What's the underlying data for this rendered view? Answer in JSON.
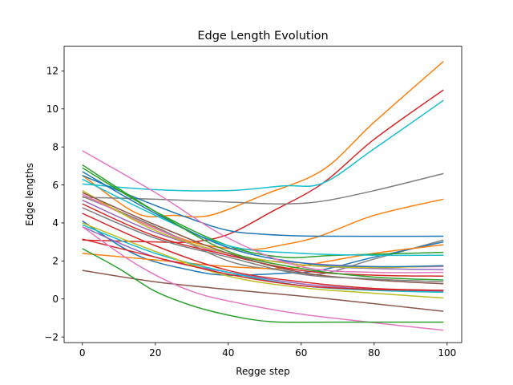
{
  "chart_data": {
    "type": "line",
    "title": "Edge Length Evolution",
    "xlabel": "Regge step",
    "ylabel": "Edge lengths",
    "xlim": [
      -5,
      104
    ],
    "ylim": [
      -2.3,
      13.3
    ],
    "x_ticks": [
      0,
      20,
      40,
      60,
      80,
      100
    ],
    "y_ticks": [
      -2,
      0,
      2,
      4,
      6,
      8,
      10,
      12
    ],
    "grid": false,
    "legend": "none",
    "series": [
      {
        "color": "#ff7f0e",
        "points": [
          [
            0,
            6.5
          ],
          [
            15,
            4.5
          ],
          [
            25,
            4.4
          ],
          [
            35,
            4.4
          ],
          [
            50,
            5.5
          ],
          [
            66,
            6.8
          ],
          [
            80,
            9.3
          ],
          [
            99,
            12.5
          ]
        ]
      },
      {
        "color": "#d62728",
        "points": [
          [
            0,
            3.1
          ],
          [
            20,
            3.0
          ],
          [
            30,
            3.0
          ],
          [
            40,
            3.4
          ],
          [
            52,
            4.6
          ],
          [
            66,
            6.1
          ],
          [
            80,
            8.4
          ],
          [
            99,
            11.0
          ]
        ]
      },
      {
        "color": "#17becf",
        "points": [
          [
            0,
            6.05
          ],
          [
            20,
            5.75
          ],
          [
            40,
            5.7
          ],
          [
            55,
            5.95
          ],
          [
            66,
            6.1
          ],
          [
            80,
            7.9
          ],
          [
            99,
            10.45
          ]
        ]
      },
      {
        "color": "#7f7f7f",
        "points": [
          [
            0,
            5.35
          ],
          [
            20,
            5.25
          ],
          [
            40,
            5.1
          ],
          [
            55,
            5.0
          ],
          [
            66,
            5.15
          ],
          [
            80,
            5.7
          ],
          [
            99,
            6.6
          ]
        ]
      },
      {
        "color": "#ff7f0e",
        "points": [
          [
            0,
            5.5
          ],
          [
            15,
            4.2
          ],
          [
            30,
            3.0
          ],
          [
            45,
            2.6
          ],
          [
            55,
            2.85
          ],
          [
            65,
            3.3
          ],
          [
            80,
            4.4
          ],
          [
            99,
            5.25
          ]
        ]
      },
      {
        "color": "#1f77b4",
        "points": [
          [
            0,
            6.5
          ],
          [
            15,
            5.3
          ],
          [
            30,
            4.2
          ],
          [
            40,
            3.6
          ],
          [
            50,
            3.4
          ],
          [
            65,
            3.3
          ],
          [
            99,
            3.3
          ]
        ]
      },
      {
        "color": "#7f7f7f",
        "points": [
          [
            0,
            5.4
          ],
          [
            20,
            3.8
          ],
          [
            40,
            2.0
          ],
          [
            55,
            1.5
          ],
          [
            65,
            1.3
          ],
          [
            80,
            2.1
          ],
          [
            99,
            3.1
          ]
        ]
      },
      {
        "color": "#1f77b4",
        "points": [
          [
            0,
            4.1
          ],
          [
            15,
            2.3
          ],
          [
            30,
            1.5
          ],
          [
            40,
            1.25
          ],
          [
            55,
            1.35
          ],
          [
            65,
            1.5
          ],
          [
            80,
            2.2
          ],
          [
            99,
            3.0
          ]
        ]
      },
      {
        "color": "#ff7f0e",
        "points": [
          [
            0,
            2.4
          ],
          [
            20,
            2.05
          ],
          [
            40,
            1.7
          ],
          [
            55,
            1.6
          ],
          [
            65,
            1.9
          ],
          [
            80,
            2.4
          ],
          [
            99,
            2.85
          ]
        ]
      },
      {
        "color": "#2ca02c",
        "points": [
          [
            0,
            6.9
          ],
          [
            20,
            4.6
          ],
          [
            40,
            2.8
          ],
          [
            55,
            2.2
          ],
          [
            70,
            2.3
          ],
          [
            99,
            2.45
          ]
        ]
      },
      {
        "color": "#17becf",
        "points": [
          [
            0,
            6.3
          ],
          [
            20,
            4.4
          ],
          [
            40,
            2.8
          ],
          [
            60,
            2.4
          ],
          [
            80,
            2.3
          ],
          [
            99,
            2.3
          ]
        ]
      },
      {
        "color": "#9467bd",
        "points": [
          [
            0,
            5.2
          ],
          [
            20,
            3.5
          ],
          [
            40,
            2.4
          ],
          [
            60,
            1.8
          ],
          [
            80,
            1.6
          ],
          [
            99,
            1.55
          ]
        ]
      },
      {
        "color": "#e377c2",
        "points": [
          [
            0,
            5.5
          ],
          [
            20,
            3.7
          ],
          [
            40,
            2.3
          ],
          [
            60,
            1.9
          ],
          [
            80,
            1.7
          ],
          [
            99,
            1.7
          ]
        ]
      },
      {
        "color": "#bcbd22",
        "points": [
          [
            0,
            5.7
          ],
          [
            20,
            3.6
          ],
          [
            40,
            2.4
          ],
          [
            60,
            1.8
          ],
          [
            80,
            1.65
          ],
          [
            99,
            1.75
          ]
        ]
      },
      {
        "color": "#1f77b4",
        "points": [
          [
            0,
            6.7
          ],
          [
            20,
            4.5
          ],
          [
            40,
            2.7
          ],
          [
            60,
            1.9
          ],
          [
            80,
            1.7
          ],
          [
            99,
            1.75
          ]
        ]
      },
      {
        "color": "#e377c2",
        "points": [
          [
            0,
            7.8
          ],
          [
            20,
            5.6
          ],
          [
            40,
            3.2
          ],
          [
            60,
            1.7
          ],
          [
            80,
            1.4
          ],
          [
            99,
            1.4
          ]
        ]
      },
      {
        "color": "#d62728",
        "points": [
          [
            0,
            5.0
          ],
          [
            20,
            3.3
          ],
          [
            40,
            2.3
          ],
          [
            60,
            1.5
          ],
          [
            80,
            1.25
          ],
          [
            99,
            1.2
          ]
        ]
      },
      {
        "color": "#2ca02c",
        "points": [
          [
            0,
            7.05
          ],
          [
            20,
            4.6
          ],
          [
            40,
            2.5
          ],
          [
            60,
            1.6
          ],
          [
            80,
            1.15
          ],
          [
            99,
            1.0
          ]
        ]
      },
      {
        "color": "#8c564b",
        "points": [
          [
            0,
            5.6
          ],
          [
            20,
            3.9
          ],
          [
            40,
            2.4
          ],
          [
            60,
            1.4
          ],
          [
            80,
            1.0
          ],
          [
            99,
            0.8
          ]
        ]
      },
      {
        "color": "#7f7f7f",
        "points": [
          [
            0,
            4.8
          ],
          [
            20,
            3.2
          ],
          [
            40,
            2.2
          ],
          [
            60,
            1.3
          ],
          [
            80,
            1.05
          ],
          [
            99,
            0.9
          ]
        ]
      },
      {
        "color": "#d62728",
        "points": [
          [
            0,
            4.5
          ],
          [
            20,
            2.8
          ],
          [
            40,
            1.5
          ],
          [
            60,
            0.9
          ],
          [
            80,
            0.55
          ],
          [
            99,
            0.45
          ]
        ]
      },
      {
        "color": "#9467bd",
        "points": [
          [
            0,
            3.8
          ],
          [
            20,
            2.2
          ],
          [
            40,
            1.4
          ],
          [
            60,
            0.8
          ],
          [
            80,
            0.5
          ],
          [
            99,
            0.4
          ]
        ]
      },
      {
        "color": "#17becf",
        "points": [
          [
            0,
            3.9
          ],
          [
            20,
            2.4
          ],
          [
            40,
            1.4
          ],
          [
            60,
            0.7
          ],
          [
            80,
            0.45
          ],
          [
            99,
            0.35
          ]
        ]
      },
      {
        "color": "#bcbd22",
        "points": [
          [
            0,
            4.0
          ],
          [
            20,
            2.5
          ],
          [
            40,
            1.2
          ],
          [
            60,
            0.6
          ],
          [
            80,
            0.3
          ],
          [
            99,
            0.05
          ]
        ]
      },
      {
        "color": "#d62728",
        "points": [
          [
            0,
            3.15
          ],
          [
            20,
            2.2
          ],
          [
            40,
            1.3
          ],
          [
            60,
            0.7
          ],
          [
            80,
            0.5
          ],
          [
            99,
            0.45
          ]
        ]
      },
      {
        "color": "#8c564b",
        "points": [
          [
            0,
            1.5
          ],
          [
            20,
            0.9
          ],
          [
            40,
            0.5
          ],
          [
            60,
            0.15
          ],
          [
            80,
            -0.25
          ],
          [
            99,
            -0.65
          ]
        ]
      },
      {
        "color": "#e377c2",
        "points": [
          [
            0,
            3.8
          ],
          [
            15,
            1.8
          ],
          [
            30,
            0.4
          ],
          [
            45,
            -0.3
          ],
          [
            60,
            -0.8
          ],
          [
            80,
            -1.25
          ],
          [
            99,
            -1.65
          ]
        ]
      },
      {
        "color": "#2ca02c",
        "points": [
          [
            0,
            2.65
          ],
          [
            10,
            1.6
          ],
          [
            20,
            0.4
          ],
          [
            30,
            -0.35
          ],
          [
            40,
            -0.85
          ],
          [
            52,
            -1.2
          ],
          [
            70,
            -1.22
          ],
          [
            99,
            -1.22
          ]
        ]
      }
    ]
  }
}
